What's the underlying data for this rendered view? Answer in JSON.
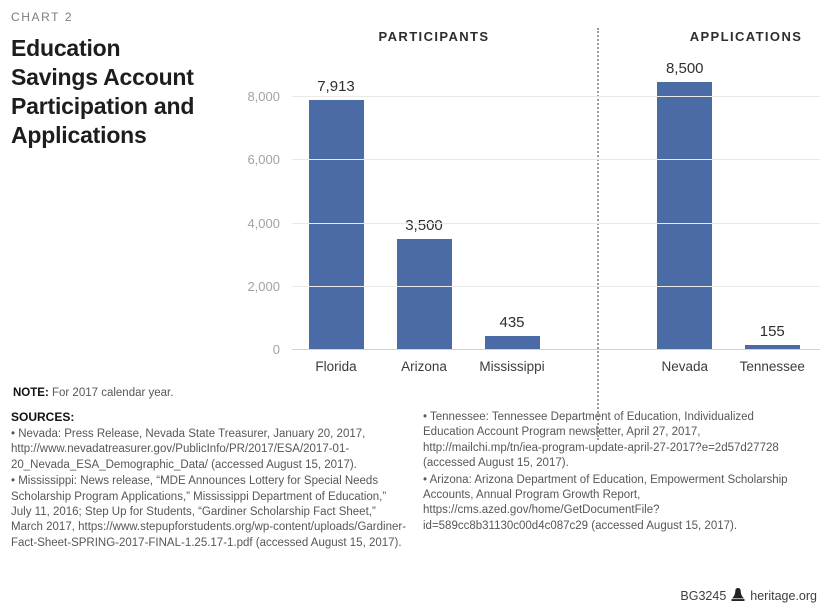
{
  "header": {
    "chart_label": "CHART 2",
    "title": "Education Savings Account Participation and Applications",
    "title_lines": [
      "Education",
      "Savings Account",
      "Participation and",
      "Applications"
    ]
  },
  "chart_data": {
    "type": "bar",
    "title": "Education Savings Account Participation and Applications",
    "groups": [
      {
        "label": "PARTICIPANTS",
        "categories": [
          "Florida",
          "Arizona",
          "Mississippi"
        ],
        "values": [
          7913,
          3500,
          435
        ],
        "value_labels": [
          "7,913",
          "3,500",
          "435"
        ]
      },
      {
        "label": "APPLICATIONS",
        "categories": [
          "Nevada",
          "Tennessee"
        ],
        "values": [
          8500,
          155
        ],
        "value_labels": [
          "8,500",
          "155"
        ]
      }
    ],
    "xlabel": "",
    "ylabel": "",
    "ylim": [
      0,
      8000
    ],
    "yticks": [
      0,
      2000,
      4000,
      6000,
      8000
    ],
    "ytick_labels": [
      "0",
      "2,000",
      "4,000",
      "6,000",
      "8,000"
    ],
    "bar_color": "#4a6ba6",
    "grid": true,
    "legend": false,
    "separator": "dotted vertical line between PARTICIPANTS and APPLICATIONS groups"
  },
  "note": {
    "label": "NOTE:",
    "text": "For 2017 calendar year."
  },
  "sources": {
    "label": "SOURCES:",
    "col1": [
      "• Nevada: Press Release, Nevada State Treasurer, January 20, 2017, http://www.nevadatreasurer.gov/PublicInfo/PR/2017/ESA/2017-01-20_Nevada_ESA_Demographic_Data/ (accessed August 15, 2017).",
      "• Mississippi: News release, “MDE Announces Lottery for Special Needs Scholarship Program Applications,” Mississippi Department of Education,” July 11, 2016; Step Up for Students, “Gardiner Scholarship Fact Sheet,” March 2017, https://www.stepupforstudents.org/wp-content/uploads/Gardiner-Fact-Sheet-SPRING-2017-FINAL-1.25.17-1.pdf (accessed August 15, 2017)."
    ],
    "col2": [
      "• Tennessee: Tennessee Department of Education, Individualized Education Account Program newsletter, April 27, 2017, http://mailchi.mp/tn/iea-program-update-april-27-2017?e=2d57d27728 (accessed August 15, 2017).",
      "• Arizona: Arizona Department of Education, Empowerment Scholarship Accounts, Annual Program Growth Report, https://cms.azed.gov/home/GetDocumentFile?id=589cc8b31130c00d4c087c29 (accessed August 15, 2017)."
    ]
  },
  "footer": {
    "id": "BG3245",
    "site": "heritage.org"
  }
}
